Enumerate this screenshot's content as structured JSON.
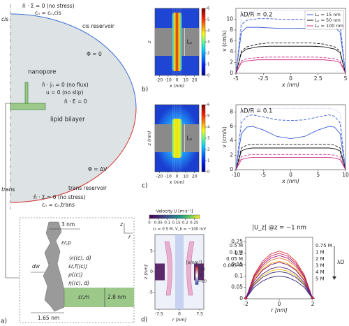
{
  "panel_labels": [
    "a)",
    "b)",
    "c)",
    "d)"
  ],
  "diagram": {
    "texts": [
      "n̂ · Σ = 0 (no stress)",
      "cₙ = cₙ,cis",
      "cis",
      "cis reservoir",
      "Φ = 0",
      "nanopore",
      "n̂ · jₙ = 0 (no flux)",
      "u = 0 (no slip)",
      "n̂ · E = 0",
      "lipid bilayer",
      "Φ = ΔV",
      "trans",
      "trans reservoir",
      "n̂ · Σ = 0 (no stress)",
      "cₙ = cₙ,trans",
      "z",
      "r",
      "3 nm",
      "εr,p",
      "dw",
      "𝒟ᵢ(⟨c⟩, d)",
      "εr,f(⟨c⟩)",
      "ρ(⟨c⟩)",
      "η(⟨c⟩, d)",
      "εr,m",
      "2.8 nm",
      "1.65 nm"
    ]
  },
  "chart_data": [
    {
      "type": "heatmap",
      "xlabel": "x (nm)",
      "ylabel": "z",
      "annotation": "Lₚ",
      "xlim": [
        -25,
        25
      ],
      "xticks": [
        -20,
        -10,
        0,
        10,
        20
      ],
      "colorbars": [
        {
          "lim": [
            0,
            6
          ],
          "ticks": [
            0,
            1,
            2,
            3,
            4,
            5,
            6
          ]
        }
      ]
    },
    {
      "type": "line",
      "title": "λD/R = 0.2",
      "xlabel": "x (nm)",
      "ylabel": "v (cm/s)",
      "legend": "upper right",
      "x": [
        -5,
        -4.5,
        -4,
        -3,
        -2,
        -1,
        0,
        1,
        2,
        3,
        4,
        4.5,
        5
      ],
      "xlim": [
        -5,
        5
      ],
      "xticks": [
        -5,
        -2.5,
        0,
        2.5,
        5
      ],
      "ylim": [
        0,
        12
      ],
      "yticks": [
        0,
        2,
        4,
        6,
        8,
        10
      ],
      "series": [
        {
          "name": "Lₚ = 15 nm",
          "color": "#3b5bd6",
          "values": [
            0,
            7.6,
            8.5,
            8.5,
            8.4,
            8.3,
            8.3,
            8.3,
            8.4,
            8.5,
            8.5,
            7.6,
            0
          ]
        },
        {
          "name": "Lₚ = 50 nm",
          "color": "#111111",
          "values": [
            0,
            3.8,
            4.5,
            4.9,
            5,
            5,
            5,
            5,
            5,
            4.9,
            4.5,
            3.8,
            0
          ]
        },
        {
          "name": "Lₚ = 100 nm",
          "color": "#d0308a",
          "values": [
            0,
            2,
            2.3,
            2.5,
            2.5,
            2.5,
            2.5,
            2.5,
            2.5,
            2.5,
            2.3,
            2,
            0
          ]
        },
        {
          "color": "#3b5bd6",
          "dash": "dashed",
          "values": [
            0,
            9,
            9.8,
            10.1,
            10.1,
            10,
            10,
            10,
            10.1,
            10.1,
            9.8,
            9,
            0
          ]
        },
        {
          "color": "#a9b6ee",
          "dash": "dotted",
          "values": [
            0,
            10.5,
            11.3,
            11.6,
            11.6,
            11.6,
            11.6,
            11.6,
            11.6,
            11.6,
            11.3,
            10.5,
            0
          ]
        },
        {
          "color": "#111111",
          "dash": "dashed",
          "values": [
            0,
            4.1,
            4.9,
            5.4,
            5.6,
            5.6,
            5.6,
            5.6,
            5.6,
            5.4,
            4.9,
            4.1,
            0
          ]
        },
        {
          "color": "#d0308a",
          "dash": "dashed",
          "values": [
            0,
            2.3,
            2.7,
            2.9,
            3,
            3,
            3,
            3,
            3,
            2.9,
            2.7,
            2.3,
            0
          ]
        }
      ]
    },
    {
      "type": "heatmap",
      "xlabel": "x (nm)",
      "ylabel": "z (nm)",
      "annotation": "Lₚ",
      "xlim": [
        -25,
        25
      ],
      "xticks": [
        -20,
        -10,
        0,
        10,
        20
      ],
      "colorbars": [
        {
          "lim": [
            0,
            6
          ],
          "ticks": [
            0,
            1,
            2,
            3,
            4,
            5,
            6
          ]
        }
      ]
    },
    {
      "type": "line",
      "title": "λD/R = 0.1",
      "xlabel": "x (nm)",
      "ylabel": "v (cm/s)",
      "x": [
        -10,
        -9,
        -8,
        -7,
        -5,
        -2.5,
        0,
        2.5,
        5,
        7,
        8,
        9,
        10
      ],
      "xlim": [
        -10,
        10
      ],
      "xticks": [
        -10,
        -5,
        0,
        5,
        10
      ],
      "ylim": [
        0,
        9
      ],
      "yticks": [
        0,
        2,
        4,
        6,
        8
      ],
      "series": [
        {
          "color": "#3b5bd6",
          "values": [
            0,
            5,
            5.9,
            6,
            5.5,
            4.6,
            4.3,
            4.6,
            5.5,
            6,
            5.9,
            5,
            0
          ]
        },
        {
          "color": "#3b5bd6",
          "dash": "dashed",
          "values": [
            0,
            6.5,
            7.4,
            7.6,
            7.3,
            6.9,
            6.8,
            6.9,
            7.3,
            7.6,
            7.4,
            6.5,
            0
          ]
        },
        {
          "color": "#a9b6ee",
          "dash": "dotted",
          "values": [
            0,
            7.8,
            8.4,
            8.5,
            8.5,
            8.5,
            8.5,
            8.5,
            8.5,
            8.5,
            8.4,
            7.8,
            0
          ]
        },
        {
          "color": "#111111",
          "values": [
            0,
            2.6,
            2.9,
            3,
            3,
            3,
            3,
            3,
            3,
            3,
            2.9,
            2.6,
            0
          ]
        },
        {
          "color": "#111111",
          "dash": "dashed",
          "values": [
            0,
            3,
            3.4,
            3.5,
            3.5,
            3.5,
            3.5,
            3.5,
            3.5,
            3.5,
            3.4,
            3,
            0
          ]
        },
        {
          "color": "#d0308a",
          "values": [
            0,
            1.4,
            1.6,
            1.7,
            1.7,
            1.7,
            1.7,
            1.7,
            1.7,
            1.7,
            1.6,
            1.4,
            0
          ]
        },
        {
          "color": "#d0308a",
          "dash": "dashed",
          "values": [
            0,
            1.8,
            2,
            2.1,
            2.1,
            2.1,
            2.1,
            2.1,
            2.1,
            2.1,
            2,
            1.8,
            0
          ]
        }
      ]
    },
    {
      "type": "heatmap",
      "xlabel": "r [nm]",
      "ylabel": "z [nm]",
      "annotation": "c₀ = 0.5 M, V_b = −100 mV",
      "xlim": [
        -9,
        9
      ],
      "xticks": [
        -7.5,
        0,
        7.5
      ],
      "ylim": [
        -9,
        9
      ],
      "yticks": [
        5,
        0,
        -5
      ],
      "colorbars": [
        {
          "label": "Velocity U [m·s⁻¹]",
          "lim": [
            0,
            0.28
          ],
          "ticks": [
            0,
            0.05,
            0.1,
            0.15,
            0.2,
            0.25
          ]
        },
        {
          "label": "[e/nm³]",
          "lim": [
            -15,
            15
          ],
          "ticks": [
            10,
            0,
            -10
          ]
        }
      ]
    },
    {
      "type": "line",
      "title": "|U_z| @z = −1 nm",
      "xlabel": "r [nm]",
      "annotation": "λD",
      "x": [
        -2,
        -1.5,
        -1,
        -0.5,
        0,
        0.5,
        1,
        1.5,
        2
      ],
      "xlim": [
        -2,
        2
      ],
      "xticks": [
        -2,
        0,
        2
      ],
      "ylim": [
        0,
        0.27
      ],
      "yticks": [
        0,
        0.05,
        0.1,
        0.15,
        0.2,
        0.25
      ],
      "series": [
        {
          "name": "0.5 M",
          "color": "#e03030",
          "values": [
            0,
            0.105,
            0.164,
            0.197,
            0.21,
            0.197,
            0.164,
            0.105,
            0
          ]
        },
        {
          "name": "0.1 M",
          "color": "#f07020",
          "values": [
            0,
            0.09,
            0.14,
            0.169,
            0.18,
            0.169,
            0.14,
            0.09,
            0
          ]
        },
        {
          "name": "0.05 M",
          "color": "#f0a000",
          "values": [
            0,
            0.083,
            0.129,
            0.155,
            0.165,
            0.155,
            0.129,
            0.083,
            0
          ]
        },
        {
          "name": "0.005 M",
          "color": "#e8c000",
          "values": [
            0,
            0.065,
            0.101,
            0.122,
            0.13,
            0.122,
            0.101,
            0.065,
            0
          ]
        },
        {
          "name": "0.75 M",
          "color": "#c0205a",
          "values": [
            0,
            0.1,
            0.156,
            0.188,
            0.2,
            0.188,
            0.156,
            0.1,
            0
          ]
        },
        {
          "name": "1 M",
          "color": "#a01070",
          "values": [
            0,
            0.095,
            0.148,
            0.179,
            0.19,
            0.179,
            0.148,
            0.095,
            0
          ]
        },
        {
          "name": "2 M",
          "color": "#801080",
          "values": [
            0,
            0.08,
            0.125,
            0.15,
            0.16,
            0.15,
            0.125,
            0.08,
            0
          ]
        },
        {
          "name": "3 M",
          "color": "#602080",
          "values": [
            0,
            0.07,
            0.109,
            0.132,
            0.14,
            0.132,
            0.109,
            0.07,
            0
          ]
        },
        {
          "name": "4 M",
          "color": "#402878",
          "values": [
            0,
            0.06,
            0.094,
            0.113,
            0.12,
            0.113,
            0.094,
            0.06,
            0
          ]
        },
        {
          "name": "5 M",
          "color": "#2a1f70",
          "values": [
            0,
            0.05,
            0.078,
            0.094,
            0.1,
            0.094,
            0.078,
            0.05,
            0
          ]
        }
      ]
    }
  ]
}
